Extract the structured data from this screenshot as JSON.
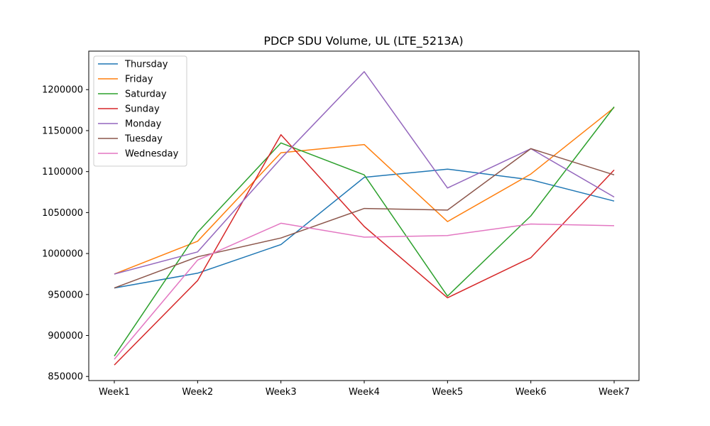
{
  "chart_data": {
    "type": "line",
    "title": "PDCP SDU Volume, UL (LTE_5213A)",
    "xlabel": "",
    "ylabel": "",
    "categories": [
      "Week1",
      "Week2",
      "Week3",
      "Week4",
      "Week5",
      "Week6",
      "Week7"
    ],
    "ylim": [
      845000,
      1247000
    ],
    "yticks": [
      850000,
      900000,
      950000,
      1000000,
      1050000,
      1100000,
      1150000,
      1200000
    ],
    "grid": false,
    "legend_position": "top-left",
    "series": [
      {
        "name": "Thursday",
        "color": "#1f77b4",
        "values": [
          958000,
          976000,
          1011000,
          1093000,
          1103000,
          1090000,
          1064000
        ]
      },
      {
        "name": "Friday",
        "color": "#ff7f0e",
        "values": [
          975000,
          1015000,
          1123000,
          1133000,
          1039000,
          1097000,
          1178000
        ]
      },
      {
        "name": "Saturday",
        "color": "#2ca02c",
        "values": [
          875000,
          1026000,
          1135000,
          1096000,
          948000,
          1046000,
          1179000
        ]
      },
      {
        "name": "Sunday",
        "color": "#d62728",
        "values": [
          864000,
          967000,
          1145000,
          1033000,
          946000,
          995000,
          1102000
        ]
      },
      {
        "name": "Monday",
        "color": "#9467bd",
        "values": [
          975000,
          1002000,
          1116000,
          1222000,
          1080000,
          1128000,
          1069000
        ]
      },
      {
        "name": "Tuesday",
        "color": "#8c564b",
        "values": [
          958000,
          996000,
          1019000,
          1055000,
          1053000,
          1128000,
          1096000
        ]
      },
      {
        "name": "Wednesday",
        "color": "#e377c2",
        "values": [
          871000,
          992000,
          1037000,
          1020000,
          1022000,
          1036000,
          1034000
        ]
      }
    ]
  }
}
